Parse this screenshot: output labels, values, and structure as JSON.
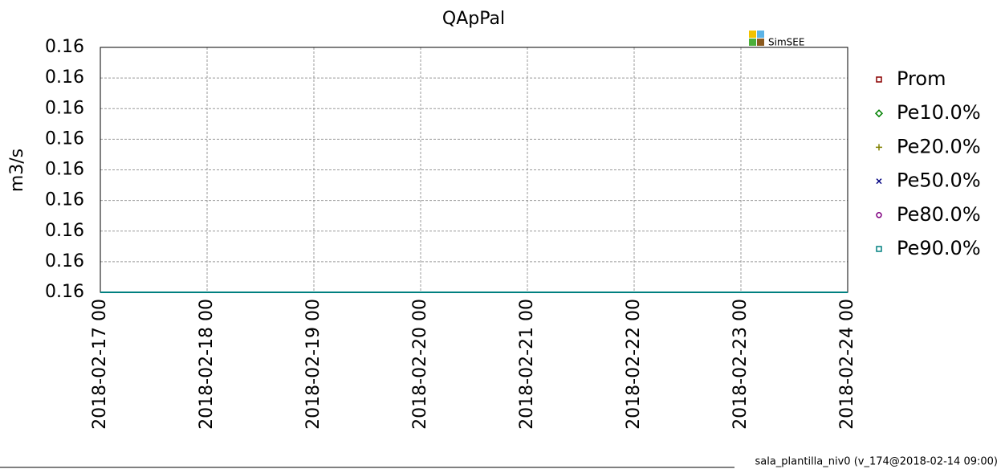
{
  "chart_data": {
    "type": "line",
    "title": "QApPal",
    "y_label": "m3/s",
    "watermark": "SimSEE",
    "footer": "sala_plantilla_niv0 (v_174@2018-02-14 09:00)",
    "categories": [
      "2018-02-17 00",
      "2018-02-18 00",
      "2018-02-19 00",
      "2018-02-20 00",
      "2018-02-21 00",
      "2018-02-22 00",
      "2018-02-23 00",
      "2018-02-24 00"
    ],
    "ylim": [
      0.16,
      0.1604
    ],
    "yticks": [
      {
        "value": 0.16,
        "label": "0.16"
      },
      {
        "value": 0.16005,
        "label": "0.16"
      },
      {
        "value": 0.1601,
        "label": "0.16"
      },
      {
        "value": 0.16015,
        "label": "0.16"
      },
      {
        "value": 0.1602,
        "label": "0.16"
      },
      {
        "value": 0.16025,
        "label": "0.16"
      },
      {
        "value": 0.1603,
        "label": "0.16"
      },
      {
        "value": 0.16035,
        "label": "0.16"
      },
      {
        "value": 0.1604,
        "label": "0.16"
      }
    ],
    "grid": true,
    "series": [
      {
        "name": "Prom",
        "color": "#8b0000",
        "marker": "square",
        "values": [
          0.16,
          0.16,
          0.16,
          0.16,
          0.16,
          0.16,
          0.16,
          0.16
        ]
      },
      {
        "name": "Pe10.0%",
        "color": "#008000",
        "marker": "diamond",
        "values": [
          0.16,
          0.16,
          0.16,
          0.16,
          0.16,
          0.16,
          0.16,
          0.16
        ]
      },
      {
        "name": "Pe20.0%",
        "color": "#808000",
        "marker": "plus",
        "values": [
          0.16,
          0.16,
          0.16,
          0.16,
          0.16,
          0.16,
          0.16,
          0.16
        ]
      },
      {
        "name": "Pe50.0%",
        "color": "#000080",
        "marker": "cross",
        "values": [
          0.16,
          0.16,
          0.16,
          0.16,
          0.16,
          0.16,
          0.16,
          0.16
        ]
      },
      {
        "name": "Pe80.0%",
        "color": "#800080",
        "marker": "circle",
        "values": [
          0.16,
          0.16,
          0.16,
          0.16,
          0.16,
          0.16,
          0.16,
          0.16
        ]
      },
      {
        "name": "Pe90.0%",
        "color": "#008080",
        "marker": "square",
        "values": [
          0.16,
          0.16,
          0.16,
          0.16,
          0.16,
          0.16,
          0.16,
          0.16
        ]
      }
    ]
  }
}
